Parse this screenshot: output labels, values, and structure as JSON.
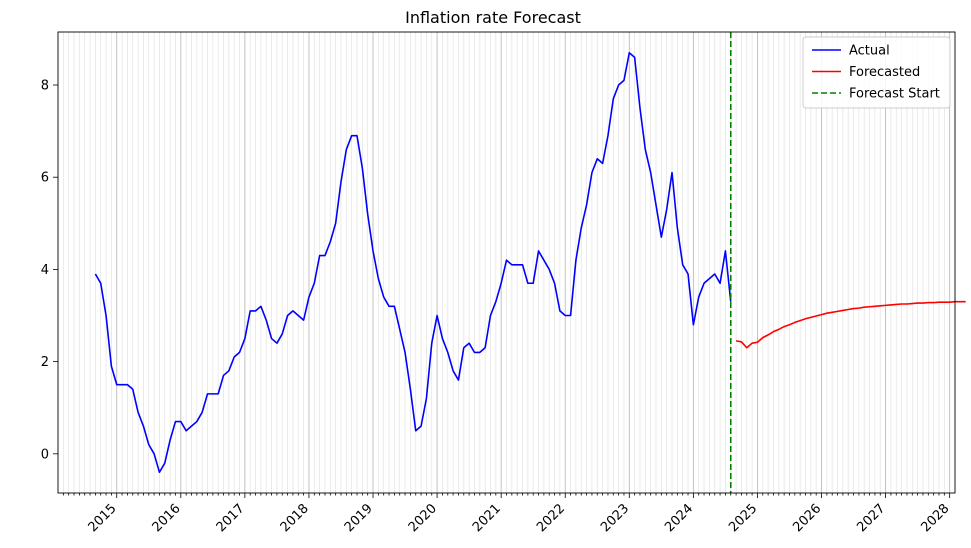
{
  "chart_data": {
    "type": "line",
    "title": "Inflation rate Forecast",
    "xlabel": "",
    "ylabel": "",
    "x_axis": "date",
    "xlim": [
      "2014-02",
      "2028-02"
    ],
    "ylim": [
      -0.85,
      9.15
    ],
    "y_ticks": [
      0,
      2,
      4,
      6,
      8
    ],
    "x_tick_years": [
      2015,
      2016,
      2017,
      2018,
      2019,
      2020,
      2021,
      2022,
      2023,
      2024,
      2025,
      2026,
      2027,
      2028
    ],
    "grid": "vertical monthly lines",
    "legend_position": "top-right",
    "series": [
      {
        "name": "Actual",
        "color": "#0000ff",
        "style": "solid",
        "start": "2014-09",
        "values": [
          3.9,
          3.7,
          3.0,
          1.9,
          1.5,
          1.5,
          1.5,
          1.4,
          0.9,
          0.6,
          0.2,
          0.0,
          -0.4,
          -0.2,
          0.3,
          0.7,
          0.7,
          0.5,
          0.6,
          0.7,
          0.9,
          1.3,
          1.3,
          1.3,
          1.7,
          1.8,
          2.1,
          2.2,
          2.5,
          3.1,
          3.1,
          3.2,
          2.9,
          2.5,
          2.4,
          2.6,
          3.0,
          3.1,
          3.0,
          2.9,
          3.4,
          3.7,
          4.3,
          4.3,
          4.6,
          5.0,
          5.9,
          6.6,
          6.9,
          6.9,
          6.2,
          5.2,
          4.4,
          3.8,
          3.4,
          3.2,
          3.2,
          2.7,
          2.2,
          1.4,
          0.5,
          0.6,
          1.2,
          2.4,
          3.0,
          2.5,
          2.2,
          1.8,
          1.6,
          2.3,
          2.4,
          2.2,
          2.2,
          2.3,
          3.0,
          3.3,
          3.7,
          4.2,
          4.1,
          4.1,
          4.1,
          3.7,
          3.7,
          4.4,
          4.2,
          4.0,
          3.7,
          3.1,
          3.0,
          3.0,
          4.2,
          4.9,
          5.4,
          6.1,
          6.4,
          6.3,
          6.9,
          7.7,
          8.0,
          8.1,
          8.7,
          8.6,
          7.5,
          6.6,
          6.1,
          5.4,
          4.7,
          5.3,
          6.1,
          4.9,
          4.1,
          3.9,
          2.8,
          3.4,
          3.7,
          3.8,
          3.9,
          3.7,
          4.4,
          3.3
        ]
      },
      {
        "name": "Forecasted",
        "color": "#ff0000",
        "style": "solid",
        "start": "2024-09",
        "values": [
          2.45,
          2.43,
          2.3,
          2.4,
          2.42,
          2.52,
          2.58,
          2.65,
          2.7,
          2.76,
          2.8,
          2.85,
          2.89,
          2.93,
          2.96,
          2.99,
          3.02,
          3.05,
          3.07,
          3.09,
          3.11,
          3.13,
          3.15,
          3.16,
          3.18,
          3.19,
          3.2,
          3.21,
          3.22,
          3.23,
          3.24,
          3.25,
          3.25,
          3.26,
          3.27,
          3.27,
          3.28,
          3.28,
          3.29,
          3.29,
          3.29,
          3.3,
          3.3,
          3.3
        ]
      },
      {
        "name": "Forecast Start",
        "color": "#008000",
        "style": "dashed",
        "x": "2024-08"
      }
    ]
  }
}
